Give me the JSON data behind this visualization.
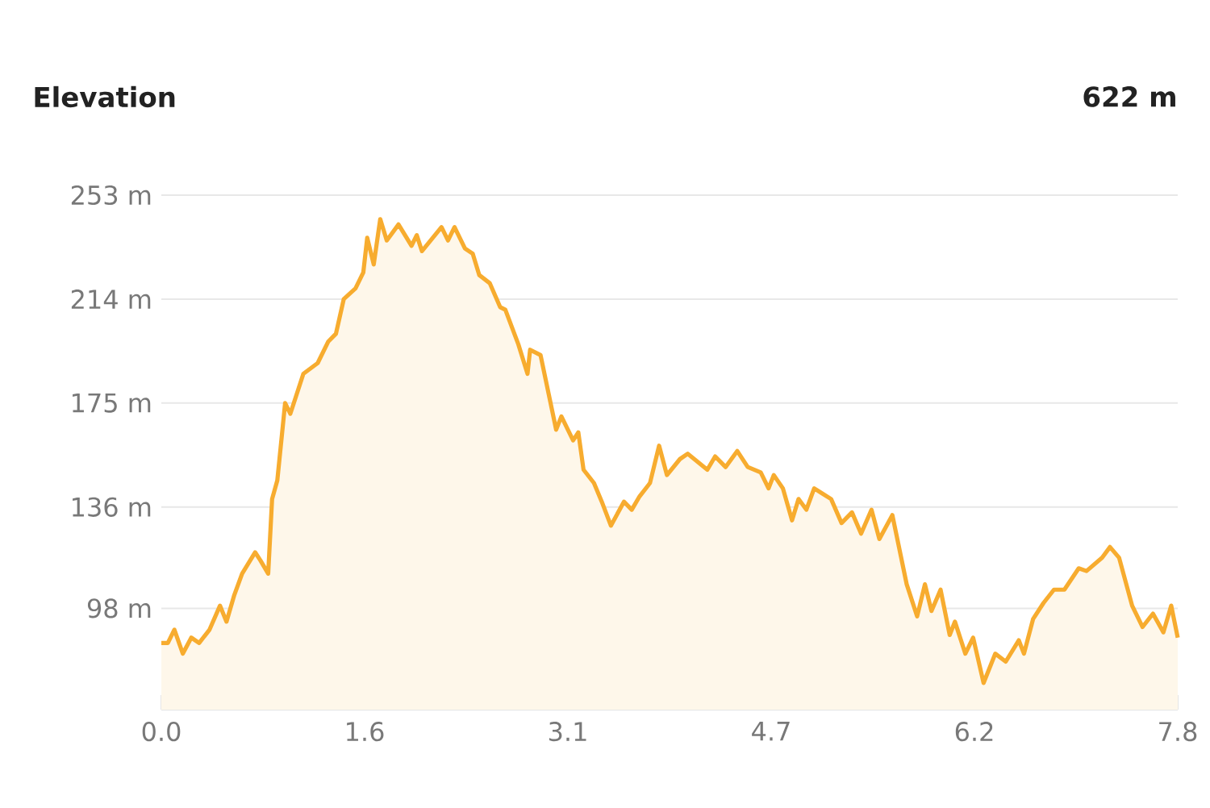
{
  "chart_data": {
    "type": "area",
    "title": "Elevation",
    "annotations": [
      "622 m"
    ],
    "x": [
      0,
      0.05,
      0.1,
      0.165,
      0.23,
      0.29,
      0.37,
      0.45,
      0.5,
      0.56,
      0.62,
      0.72,
      0.76,
      0.82,
      0.85,
      0.89,
      0.95,
      0.99,
      1.09,
      1.2,
      1.28,
      1.34,
      1.4,
      1.49,
      1.55,
      1.58,
      1.63,
      1.68,
      1.73,
      1.82,
      1.92,
      1.96,
      2.0,
      2.15,
      2.2,
      2.25,
      2.33,
      2.39,
      2.44,
      2.52,
      2.6,
      2.64,
      2.74,
      2.81,
      2.83,
      2.91,
      3.03,
      3.07,
      3.16,
      3.2,
      3.24,
      3.32,
      3.38,
      3.45,
      3.55,
      3.61,
      3.67,
      3.75,
      3.82,
      3.88,
      3.98,
      4.04,
      4.19,
      4.25,
      4.33,
      4.42,
      4.5,
      4.6,
      4.66,
      4.7,
      4.77,
      4.84,
      4.89,
      4.95,
      5.01,
      5.14,
      5.22,
      5.3,
      5.37,
      5.45,
      5.51,
      5.61,
      5.72,
      5.8,
      5.86,
      5.91,
      5.98,
      6.05,
      6.09,
      6.17,
      6.23,
      6.31,
      6.4,
      6.48,
      6.58,
      6.62,
      6.69,
      6.77,
      6.85,
      6.93,
      7.04,
      7.1,
      7.22,
      7.28,
      7.35,
      7.45,
      7.53,
      7.61,
      7.69,
      7.75,
      7.8
    ],
    "series": [
      {
        "color": "#f7ac2f",
        "values": [
          85,
          85,
          90,
          81,
          87,
          85,
          90,
          99,
          93,
          103,
          111,
          119,
          116,
          111,
          139,
          146,
          175,
          171,
          186,
          190,
          198,
          201,
          214,
          218,
          224,
          237,
          227,
          244,
          236,
          242,
          234,
          238,
          232,
          241,
          236,
          241,
          233,
          231,
          223,
          220,
          211,
          210,
          197,
          186,
          195,
          193,
          165,
          170,
          161,
          164,
          150,
          145,
          138,
          129,
          138,
          135,
          140,
          145,
          159,
          148,
          154,
          156,
          150,
          155,
          151,
          157,
          151,
          149,
          143,
          148,
          143,
          131,
          139,
          135,
          143,
          139,
          130,
          134,
          126,
          135,
          124,
          133,
          107,
          95,
          107,
          97,
          105,
          88,
          93,
          81,
          87,
          70,
          81,
          78,
          86,
          81,
          94,
          100,
          105,
          105,
          113,
          112,
          117,
          121,
          117,
          99,
          91,
          96,
          89,
          99,
          87
        ]
      }
    ],
    "xlim": [
      0,
      7.8
    ],
    "ylim": [
      60,
      253
    ],
    "xticks": [
      {
        "value": 0,
        "label": "0.0"
      },
      {
        "value": 1.56,
        "label": "1.6"
      },
      {
        "value": 3.12,
        "label": "3.1"
      },
      {
        "value": 4.68,
        "label": "4.7"
      },
      {
        "value": 6.24,
        "label": "6.2"
      },
      {
        "value": 7.8,
        "label": "7.8"
      }
    ],
    "yticks": [
      {
        "value": 98,
        "label": "98 m"
      },
      {
        "value": 136,
        "label": "136 m"
      },
      {
        "value": 175,
        "label": "175 m"
      },
      {
        "value": 214,
        "label": "214 m"
      },
      {
        "value": 253,
        "label": "253 m"
      }
    ],
    "grid": "y",
    "marker": "none",
    "line_style": "solid"
  }
}
